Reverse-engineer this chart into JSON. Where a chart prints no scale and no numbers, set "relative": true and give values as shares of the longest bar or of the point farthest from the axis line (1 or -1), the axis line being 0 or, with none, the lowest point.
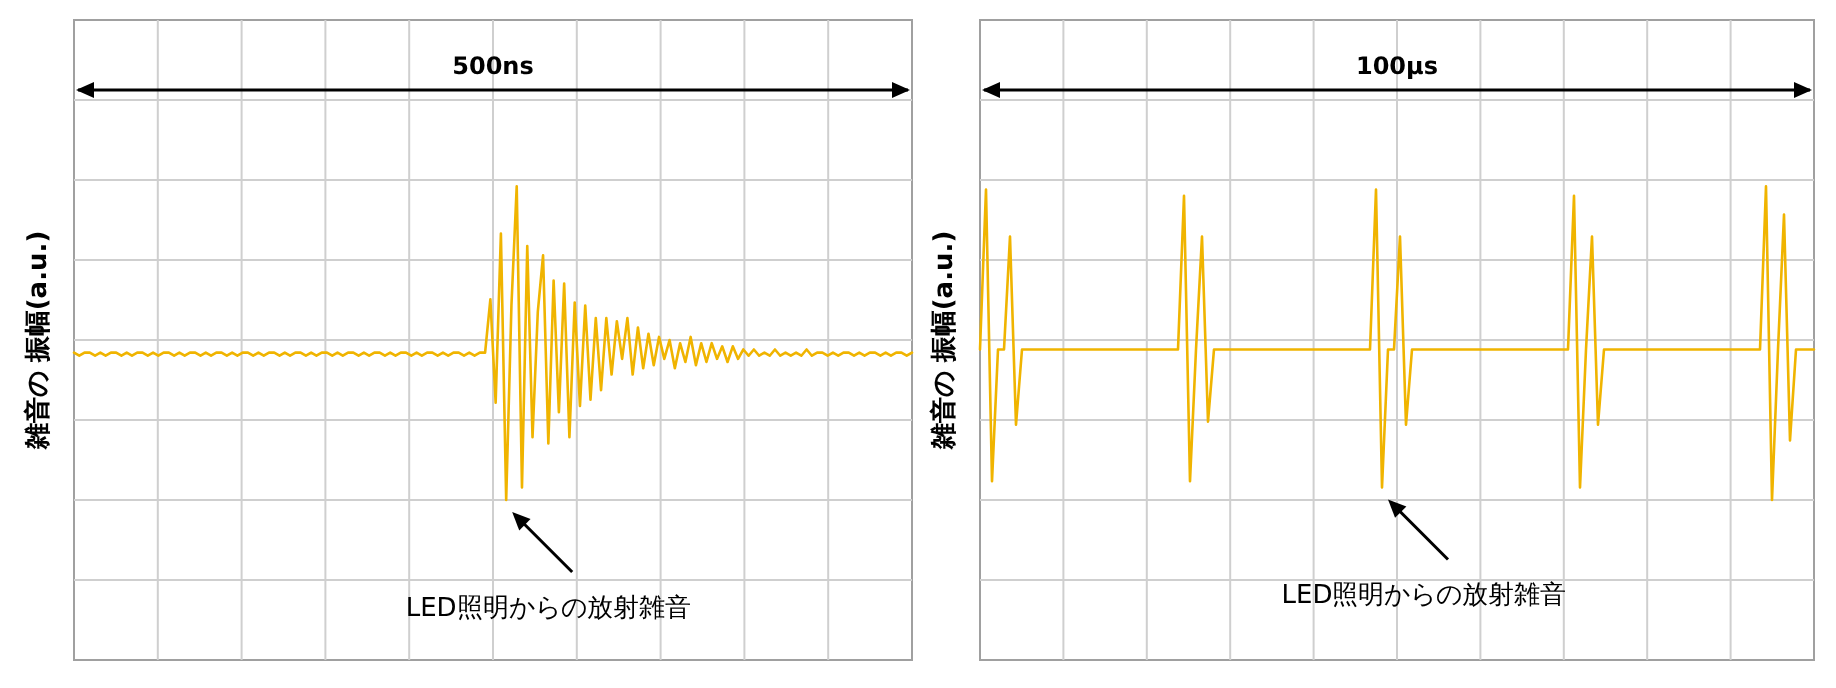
{
  "chart_data": [
    {
      "type": "line",
      "relative": true,
      "grid": true,
      "ylabel": "雑音の 振幅(a.u.)",
      "annotations": [
        "500ns",
        "LED照明からの放射雑音"
      ],
      "categories": [
        null,
        null,
        null,
        null,
        null,
        null,
        null,
        null,
        null,
        null,
        null,
        null,
        null,
        null,
        null,
        null,
        null,
        null,
        null,
        null,
        null,
        null,
        null,
        null,
        null,
        null,
        null,
        null,
        null,
        null,
        null,
        null,
        null,
        null,
        null,
        null,
        null,
        null,
        null,
        null,
        null,
        null,
        null,
        null,
        null,
        null,
        null,
        null,
        null,
        null,
        null,
        null,
        null,
        null,
        null,
        null,
        null,
        null,
        null,
        null,
        null,
        null,
        null,
        null,
        null,
        null,
        null,
        null,
        null,
        null,
        null,
        null,
        null,
        null,
        null,
        null,
        null,
        null,
        null,
        null,
        null,
        null,
        null,
        null,
        null,
        null,
        null,
        null,
        null,
        null,
        null,
        null,
        null,
        null,
        null,
        null,
        null,
        null,
        null,
        null,
        null,
        null,
        null,
        null,
        null,
        null,
        null,
        null,
        null,
        null,
        null,
        null,
        null,
        null,
        null,
        null,
        null,
        null,
        null,
        null,
        null,
        null,
        null,
        null,
        null,
        null,
        null,
        null,
        null,
        null,
        null,
        null,
        null,
        null,
        null,
        null,
        null,
        null,
        null,
        null,
        null,
        null,
        null,
        null,
        null,
        null,
        null,
        null,
        null,
        null,
        null,
        null,
        null,
        null,
        null,
        null,
        null,
        null,
        null,
        null
      ],
      "series": [
        {
          "color": "#f0b400",
          "values": [
            0.47,
            0.46,
            0.47,
            0.47,
            0.46,
            0.47,
            0.46,
            0.47,
            0.47,
            0.46,
            0.47,
            0.46,
            0.47,
            0.47,
            0.46,
            0.47,
            0.46,
            0.47,
            0.47,
            0.46,
            0.47,
            0.46,
            0.47,
            0.47,
            0.46,
            0.47,
            0.46,
            0.47,
            0.47,
            0.46,
            0.47,
            0.46,
            0.47,
            0.47,
            0.46,
            0.47,
            0.46,
            0.47,
            0.47,
            0.46,
            0.47,
            0.46,
            0.47,
            0.47,
            0.46,
            0.47,
            0.46,
            0.47,
            0.47,
            0.46,
            0.47,
            0.46,
            0.47,
            0.47,
            0.46,
            0.47,
            0.46,
            0.47,
            0.47,
            0.46,
            0.47,
            0.46,
            0.47,
            0.47,
            0.46,
            0.47,
            0.46,
            0.47,
            0.47,
            0.46,
            0.47,
            0.46,
            0.47,
            0.47,
            0.46,
            0.47,
            0.46,
            0.47,
            0.47,
            0.64,
            0.31,
            0.85,
            0.0,
            0.62,
            1.0,
            0.04,
            0.81,
            0.2,
            0.6,
            0.78,
            0.18,
            0.7,
            0.28,
            0.69,
            0.2,
            0.63,
            0.3,
            0.62,
            0.32,
            0.58,
            0.35,
            0.58,
            0.4,
            0.57,
            0.45,
            0.58,
            0.4,
            0.55,
            0.42,
            0.53,
            0.43,
            0.52,
            0.45,
            0.51,
            0.42,
            0.5,
            0.44,
            0.52,
            0.43,
            0.5,
            0.44,
            0.5,
            0.45,
            0.49,
            0.44,
            0.49,
            0.45,
            0.48,
            0.46,
            0.48,
            0.46,
            0.47,
            0.46,
            0.48,
            0.46,
            0.47,
            0.46,
            0.47,
            0.46,
            0.48,
            0.46,
            0.47,
            0.47,
            0.46,
            0.47,
            0.46,
            0.47,
            0.47,
            0.46,
            0.47,
            0.46,
            0.47,
            0.47,
            0.46,
            0.47,
            0.46,
            0.47,
            0.47,
            0.46,
            0.47
          ]
        }
      ]
    },
    {
      "type": "line",
      "relative": true,
      "grid": true,
      "ylabel": "雑音の 振幅(a.u.)",
      "annotations": [
        "100µs",
        "LED照明からの放射雑音"
      ],
      "categories": [
        null,
        null,
        null,
        null,
        null,
        null,
        null,
        null,
        null,
        null,
        null,
        null,
        null,
        null,
        null,
        null,
        null,
        null,
        null,
        null,
        null,
        null,
        null,
        null,
        null,
        null,
        null,
        null,
        null,
        null,
        null,
        null,
        null,
        null,
        null,
        null,
        null,
        null,
        null,
        null,
        null,
        null,
        null,
        null,
        null,
        null,
        null,
        null,
        null,
        null,
        null,
        null,
        null,
        null,
        null,
        null,
        null,
        null,
        null,
        null,
        null,
        null,
        null,
        null,
        null,
        null,
        null,
        null,
        null,
        null,
        null,
        null,
        null,
        null,
        null,
        null,
        null,
        null,
        null,
        null,
        null,
        null,
        null,
        null,
        null,
        null,
        null,
        null,
        null,
        null,
        null,
        null,
        null,
        null,
        null,
        null,
        null,
        null,
        null,
        null,
        null,
        null,
        null,
        null,
        null,
        null,
        null,
        null,
        null,
        null,
        null,
        null,
        null,
        null,
        null,
        null,
        null,
        null,
        null,
        null,
        null,
        null,
        null,
        null,
        null,
        null,
        null,
        null,
        null,
        null,
        null,
        null,
        null,
        null,
        null,
        null,
        null,
        null,
        null,
        null
      ],
      "series": [
        {
          "color": "#f0b400",
          "values": [
            0.48,
            0.99,
            0.06,
            0.48,
            0.48,
            0.84,
            0.24,
            0.48,
            0.48,
            0.48,
            0.48,
            0.48,
            0.48,
            0.48,
            0.48,
            0.48,
            0.48,
            0.48,
            0.48,
            0.48,
            0.48,
            0.48,
            0.48,
            0.48,
            0.48,
            0.48,
            0.48,
            0.48,
            0.48,
            0.48,
            0.48,
            0.48,
            0.48,
            0.48,
            0.97,
            0.06,
            0.48,
            0.84,
            0.25,
            0.48,
            0.48,
            0.48,
            0.48,
            0.48,
            0.48,
            0.48,
            0.48,
            0.48,
            0.48,
            0.48,
            0.48,
            0.48,
            0.48,
            0.48,
            0.48,
            0.48,
            0.48,
            0.48,
            0.48,
            0.48,
            0.48,
            0.48,
            0.48,
            0.48,
            0.48,
            0.48,
            0.99,
            0.04,
            0.48,
            0.48,
            0.84,
            0.24,
            0.48,
            0.48,
            0.48,
            0.48,
            0.48,
            0.48,
            0.48,
            0.48,
            0.48,
            0.48,
            0.48,
            0.48,
            0.48,
            0.48,
            0.48,
            0.48,
            0.48,
            0.48,
            0.48,
            0.48,
            0.48,
            0.48,
            0.48,
            0.48,
            0.48,
            0.48,
            0.48,
            0.97,
            0.04,
            0.48,
            0.84,
            0.24,
            0.48,
            0.48,
            0.48,
            0.48,
            0.48,
            0.48,
            0.48,
            0.48,
            0.48,
            0.48,
            0.48,
            0.48,
            0.48,
            0.48,
            0.48,
            0.48,
            0.48,
            0.48,
            0.48,
            0.48,
            0.48,
            0.48,
            0.48,
            0.48,
            0.48,
            0.48,
            0.48,
            1.0,
            0.0,
            0.48,
            0.91,
            0.19,
            0.48,
            0.48,
            0.48,
            0.48
          ]
        }
      ]
    }
  ]
}
